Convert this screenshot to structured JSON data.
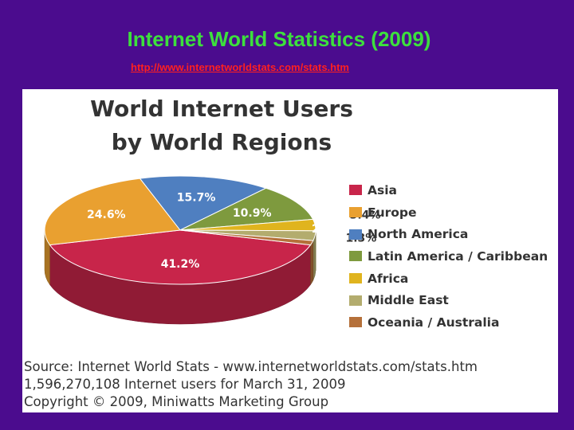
{
  "slide": {
    "title": "Internet World Statistics (2009)",
    "link": "http://www.internetworldstats.com/stats.htm"
  },
  "chart_data": {
    "type": "pie",
    "style": "3d",
    "title": "World Internet Users",
    "subtitle": "by World Regions",
    "categories": [
      "Asia",
      "Europe",
      "North America",
      "Latin America / Caribbean",
      "Africa",
      "Middle East",
      "Oceania / Australia"
    ],
    "values": [
      41.2,
      24.6,
      15.7,
      10.9,
      3.4,
      2.9,
      1.3
    ],
    "data_labels": [
      "41.2%",
      "24.6%",
      "15.7%",
      "10.9%",
      "3.4%",
      "2.9%",
      "1.3%"
    ],
    "colors": [
      "#C8254A",
      "#E9A030",
      "#4F7FC0",
      "#7E9A3E",
      "#E0B41E",
      "#B3AC6E",
      "#B5703A"
    ],
    "legend_position": "right"
  },
  "source": {
    "lines": [
      "Source: Internet World Stats -  www.internetworldstats.com/stats.htm",
      "1,596,270,108 Internet users for March 31, 2009",
      "Copyright © 2009, Miniwatts Marketing Group"
    ]
  }
}
